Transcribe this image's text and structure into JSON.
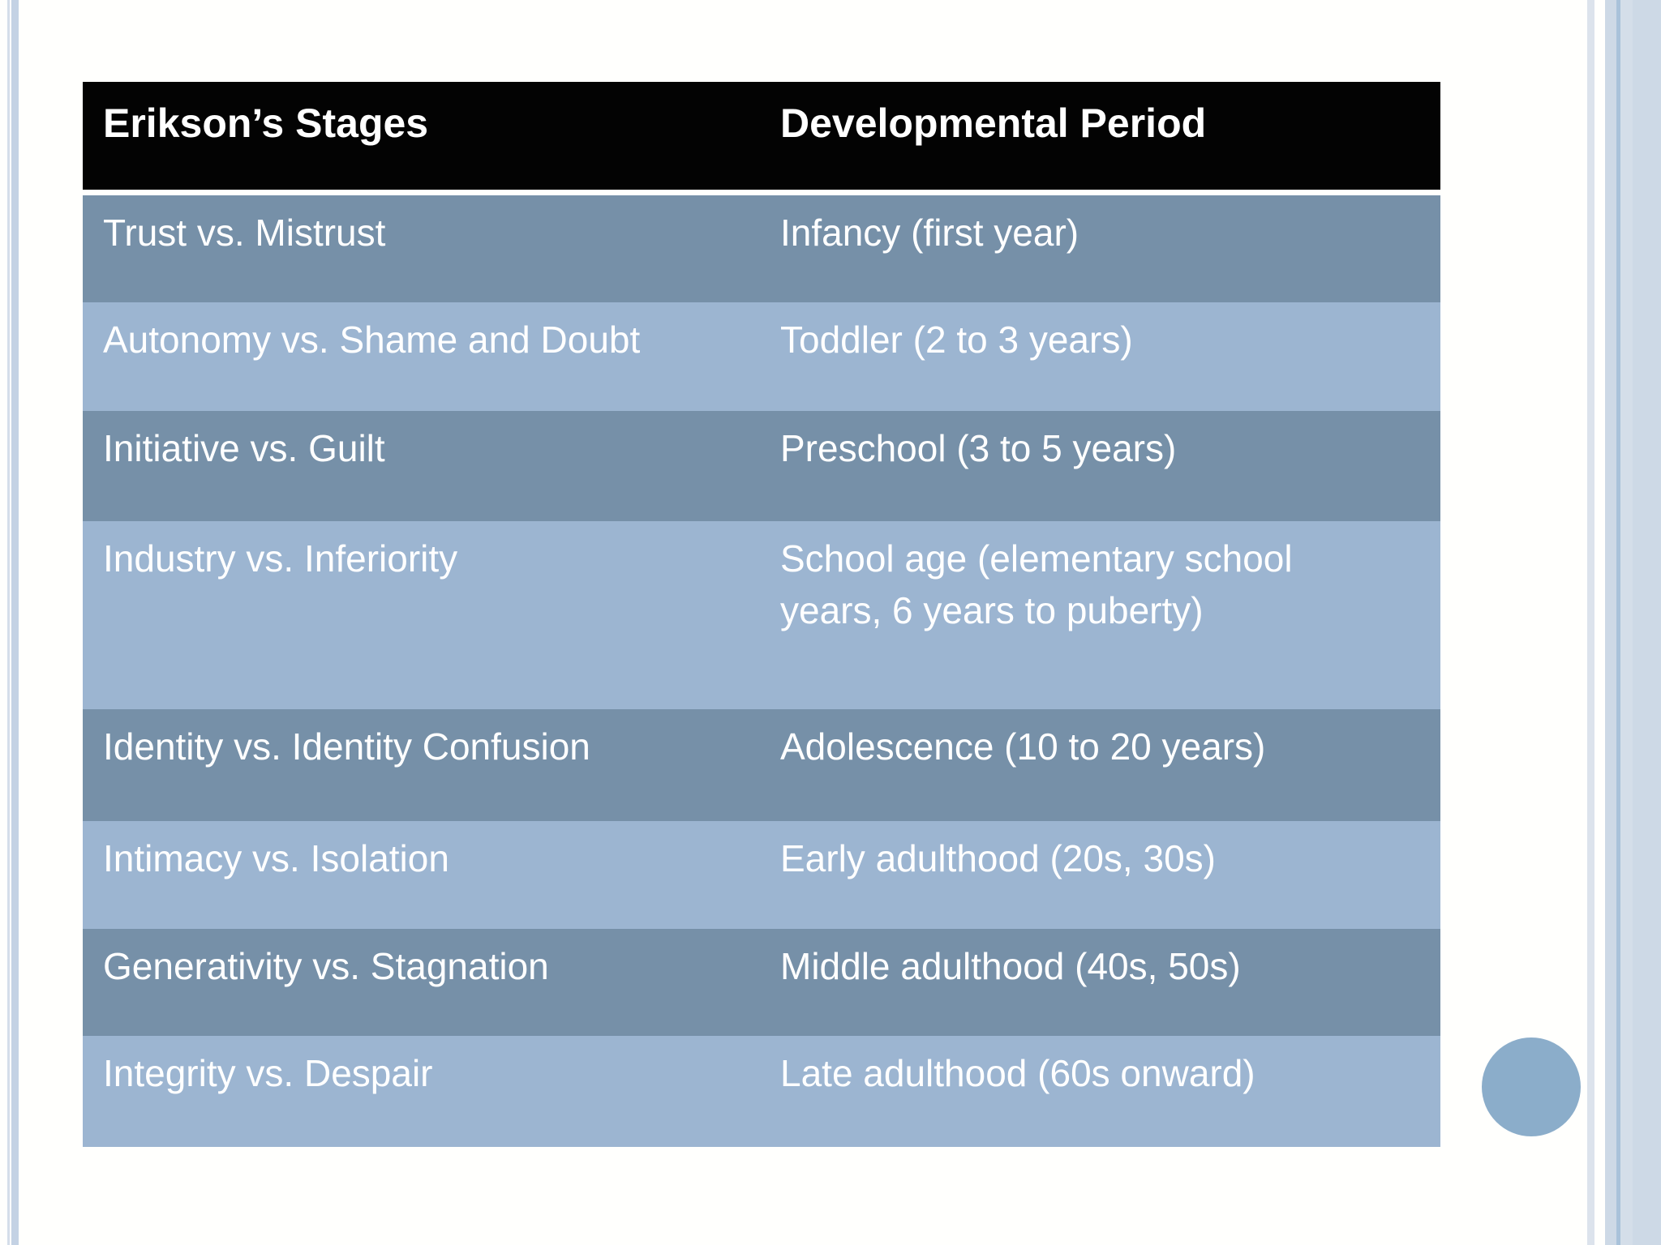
{
  "table": {
    "headers": {
      "stages": "Erikson’s Stages",
      "period": "Developmental Period"
    },
    "rows": [
      {
        "stage": "Trust vs. Mistrust",
        "period": "Infancy (first year)"
      },
      {
        "stage": "Autonomy vs. Shame and Doubt",
        "period": "Toddler (2 to 3 years)"
      },
      {
        "stage": "Initiative vs. Guilt",
        "period": "Preschool (3 to 5 years)"
      },
      {
        "stage": "Industry vs. Inferiority",
        "period": "School age (elementary school years, 6 years to puberty)"
      },
      {
        "stage": "Identity vs. Identity Confusion",
        "period": "Adolescence (10 to 20 years)"
      },
      {
        "stage": "Intimacy vs. Isolation",
        "period": "Early adulthood (20s, 30s)"
      },
      {
        "stage": "Generativity vs. Stagnation",
        "period": "Middle adulthood (40s, 50s)"
      },
      {
        "stage": "Integrity vs. Despair",
        "period": "Late adulthood (60s onward)"
      }
    ]
  },
  "colors": {
    "page_bg": "#fffffd",
    "header_bg": "#030303",
    "header_text": "#ffffff",
    "row_dark": "#7690a8",
    "row_light": "#9cb5d1",
    "row_text": "#ffffff",
    "circle": "#8badca",
    "left_line_thin": "#d4dde9",
    "left_line_thick": "#c4d2e4",
    "right_line_thin": "#dce3ec",
    "right_band": "#cdd9e6",
    "right_band_accent": "#a9c2da",
    "right_band_stripe": "#d4dee9"
  }
}
